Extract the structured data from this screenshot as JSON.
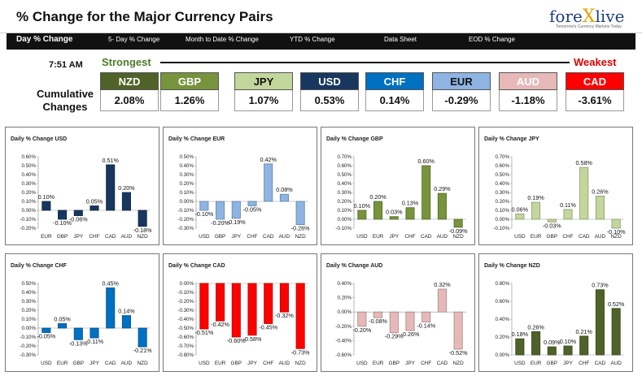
{
  "header": {
    "title": "% Change for the Major Currency Pairs",
    "logo_part1": "fore",
    "logo_x": "X",
    "logo_part2": "live",
    "logo_tagline": "Tomorrow's Currency Markets Today"
  },
  "nav": {
    "items": [
      "Day % Change",
      "5- Day % Change",
      "Month to Date % Change",
      "YTD % Change",
      "Data Sheet",
      "EOD % Change"
    ]
  },
  "summary": {
    "time": "7:51 AM",
    "strongest_label": "Strongest",
    "weakest_label": "Weakest",
    "cumulative_label_line1": "Cumulative",
    "cumulative_label_line2": "Changes",
    "currencies": [
      {
        "name": "NZD",
        "value": "2.08%",
        "color": "#4f6228",
        "text_color": "#ffffff"
      },
      {
        "name": "GBP",
        "value": "1.26%",
        "color": "#77933c",
        "text_color": "#ffffff"
      },
      {
        "name": "JPY",
        "value": "1.07%",
        "color": "#c3d69b",
        "text_color": "#111111"
      },
      {
        "name": "USD",
        "value": "0.53%",
        "color": "#17375e",
        "text_color": "#ffffff"
      },
      {
        "name": "CHF",
        "value": "0.14%",
        "color": "#0070c0",
        "text_color": "#ffffff"
      },
      {
        "name": "EUR",
        "value": "-0.29%",
        "color": "#8db4e2",
        "text_color": "#111111"
      },
      {
        "name": "AUD",
        "value": "-1.18%",
        "color": "#e6b9b8",
        "text_color": "#ffffff"
      },
      {
        "name": "CAD",
        "value": "-3.61%",
        "color": "#ff0000",
        "text_color": "#ffffff"
      }
    ]
  },
  "chart_data": [
    {
      "type": "bar",
      "title": "Daily % Change USD",
      "color": "#17375e",
      "categories": [
        "EUR",
        "GBP",
        "JPY",
        "CHF",
        "CAD",
        "AUD",
        "NZD"
      ],
      "values": [
        0.1,
        -0.1,
        -0.06,
        0.05,
        0.51,
        0.2,
        -0.18
      ],
      "labels": [
        "0.10%",
        "-0.10%",
        "-0.06%",
        "0.05%",
        "0.51%",
        "0.20%",
        "-0.18%"
      ],
      "ylim": [
        -0.2,
        0.6
      ],
      "yticks": [
        -0.2,
        -0.1,
        0.0,
        0.1,
        0.2,
        0.3,
        0.4,
        0.5,
        0.6
      ],
      "ytick_labels": [
        "-0.20%",
        "-0.10%",
        "0.00%",
        "0.10%",
        "0.20%",
        "0.30%",
        "0.40%",
        "0.50%",
        "0.60%"
      ]
    },
    {
      "type": "bar",
      "title": "Daily % Change EUR",
      "color": "#8db4e2",
      "categories": [
        "USD",
        "GBP",
        "JPY",
        "CHF",
        "CAD",
        "AUD",
        "NZD"
      ],
      "values": [
        -0.1,
        -0.2,
        -0.19,
        -0.05,
        0.42,
        0.08,
        -0.26
      ],
      "labels": [
        "-0.10%",
        "-0.20%",
        "-0.19%",
        "-0.05%",
        "0.42%",
        "0.08%",
        "-0.26%"
      ],
      "ylim": [
        -0.3,
        0.5
      ],
      "yticks": [
        -0.3,
        -0.2,
        -0.1,
        0.0,
        0.1,
        0.2,
        0.3,
        0.4,
        0.5
      ],
      "ytick_labels": [
        "-0.30%",
        "-0.20%",
        "-0.10%",
        "0.00%",
        "0.10%",
        "0.20%",
        "0.30%",
        "0.40%",
        "0.50%"
      ]
    },
    {
      "type": "bar",
      "title": "Daily % Change GBP",
      "color": "#77933c",
      "categories": [
        "USD",
        "EUR",
        "JPY",
        "CHF",
        "CAD",
        "AUD",
        "NZD"
      ],
      "values": [
        0.1,
        0.2,
        0.03,
        0.13,
        0.6,
        0.29,
        -0.09
      ],
      "labels": [
        "0.10%",
        "0.20%",
        "0.03%",
        "0.13%",
        "0.60%",
        "0.29%",
        "-0.09%"
      ],
      "ylim": [
        -0.1,
        0.7
      ],
      "yticks": [
        -0.1,
        0.0,
        0.1,
        0.2,
        0.3,
        0.4,
        0.5,
        0.6,
        0.7
      ],
      "ytick_labels": [
        "-0.10%",
        "0.00%",
        "0.10%",
        "0.20%",
        "0.30%",
        "0.40%",
        "0.50%",
        "0.60%",
        "0.70%"
      ]
    },
    {
      "type": "bar",
      "title": "Daily % Change JPY",
      "color": "#c3d69b",
      "categories": [
        "USD",
        "EUR",
        "GBP",
        "CHF",
        "CAD",
        "AUD",
        "NZD"
      ],
      "values": [
        0.06,
        0.19,
        -0.03,
        0.11,
        0.58,
        0.26,
        -0.1
      ],
      "labels": [
        "0.06%",
        "0.19%",
        "-0.03%",
        "0.11%",
        "0.58%",
        "0.26%",
        "-0.10%"
      ],
      "ylim": [
        -0.1,
        0.7
      ],
      "yticks": [
        -0.1,
        0.0,
        0.1,
        0.2,
        0.3,
        0.4,
        0.5,
        0.6,
        0.7
      ],
      "ytick_labels": [
        "-0.10%",
        "0.00%",
        "0.10%",
        "0.20%",
        "0.30%",
        "0.40%",
        "0.50%",
        "0.60%",
        "0.70%"
      ]
    },
    {
      "type": "bar",
      "title": "Daily % Change CHF",
      "color": "#0070c0",
      "categories": [
        "USD",
        "EUR",
        "GBP",
        "JPY",
        "CAD",
        "AUD",
        "NZD"
      ],
      "values": [
        -0.05,
        0.05,
        -0.13,
        -0.11,
        0.45,
        0.14,
        -0.21
      ],
      "labels": [
        "-0.05%",
        "0.05%",
        "-0.13%",
        "-0.11%",
        "0.45%",
        "0.14%",
        "-0.21%"
      ],
      "ylim": [
        -0.3,
        0.5
      ],
      "yticks": [
        -0.3,
        -0.2,
        -0.1,
        0.0,
        0.1,
        0.2,
        0.3,
        0.4,
        0.5
      ],
      "ytick_labels": [
        "-0.30%",
        "-0.20%",
        "-0.10%",
        "0.00%",
        "0.10%",
        "0.20%",
        "0.30%",
        "0.40%",
        "0.50%"
      ]
    },
    {
      "type": "bar",
      "title": "Daily % Change CAD",
      "color": "#ff0000",
      "categories": [
        "USD",
        "EUR",
        "GBP",
        "JPY",
        "CHF",
        "AUD",
        "NZD"
      ],
      "values": [
        -0.51,
        -0.42,
        -0.6,
        -0.58,
        -0.45,
        -0.32,
        -0.73
      ],
      "labels": [
        "-0.51%",
        "-0.42%",
        "-0.60%",
        "-0.58%",
        "-0.45%",
        "-0.32%",
        "-0.73%"
      ],
      "ylim": [
        -0.8,
        0.0
      ],
      "yticks": [
        -0.8,
        -0.7,
        -0.6,
        -0.5,
        -0.4,
        -0.3,
        -0.2,
        -0.1,
        0.0
      ],
      "ytick_labels": [
        "-0.80%",
        "-0.70%",
        "-0.60%",
        "-0.50%",
        "-0.40%",
        "-0.30%",
        "-0.20%",
        "-0.10%",
        "0.00%"
      ]
    },
    {
      "type": "bar",
      "title": "Daily % Change AUD",
      "color": "#e6b9b8",
      "categories": [
        "USD",
        "EUR",
        "GBP",
        "JPY",
        "CHF",
        "CAD",
        "NZD"
      ],
      "values": [
        -0.2,
        -0.08,
        -0.29,
        -0.26,
        -0.14,
        0.32,
        -0.52
      ],
      "labels": [
        "-0.20%",
        "-0.08%",
        "-0.29%",
        "-0.26%",
        "-0.14%",
        "0.32%",
        "-0.52%"
      ],
      "ylim": [
        -0.6,
        0.4
      ],
      "yticks": [
        -0.6,
        -0.4,
        -0.2,
        0.0,
        0.2,
        0.4
      ],
      "ytick_labels": [
        "-0.60%",
        "-0.40%",
        "-0.20%",
        "0.00%",
        "0.20%",
        "0.40%"
      ]
    },
    {
      "type": "bar",
      "title": "Daily % Change NZD",
      "color": "#4f6228",
      "categories": [
        "USD",
        "EUR",
        "GBP",
        "JPY",
        "CHF",
        "CAD",
        "AUD"
      ],
      "values": [
        0.18,
        0.26,
        0.09,
        0.1,
        0.21,
        0.73,
        0.52
      ],
      "labels": [
        "0.18%",
        "0.26%",
        "0.09%",
        "0.10%",
        "0.21%",
        "0.73%",
        "0.52%"
      ],
      "ylim": [
        0.0,
        0.8
      ],
      "yticks": [
        0.0,
        0.2,
        0.4,
        0.6,
        0.8
      ],
      "ytick_labels": [
        "0.00%",
        "0.20%",
        "0.40%",
        "0.60%",
        "0.80%"
      ]
    }
  ]
}
